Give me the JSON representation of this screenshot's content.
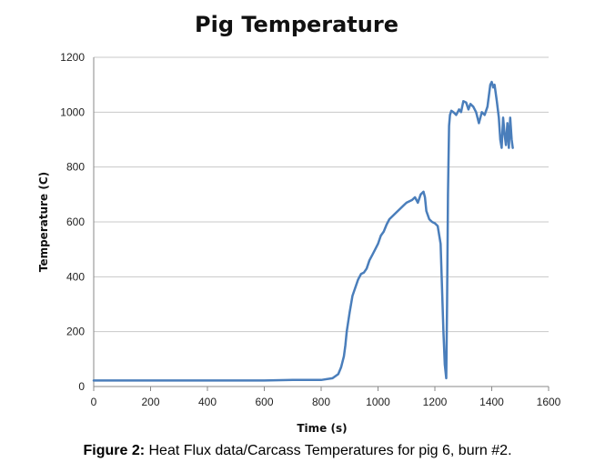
{
  "chart_data": {
    "type": "line",
    "title": "Pig Temperature",
    "xlabel": "Time (s)",
    "ylabel": "Temperature (C)",
    "xlim": [
      0,
      1600
    ],
    "ylim": [
      0,
      1200
    ],
    "xticks": [
      0,
      200,
      400,
      600,
      800,
      1000,
      1200,
      1400,
      1600
    ],
    "yticks": [
      0,
      200,
      400,
      600,
      800,
      1000,
      1200
    ],
    "grid": "horizontal",
    "legend": "none",
    "colors": {
      "series": "#4a7ebb",
      "grid": "#c8c8c8",
      "axis": "#8a8a8a"
    },
    "series": [
      {
        "x": [
          0,
          100,
          300,
          500,
          600,
          700,
          800,
          840,
          860,
          870,
          880,
          885,
          890,
          900,
          910,
          920,
          930,
          940,
          950,
          960,
          970,
          980,
          990,
          1000,
          1010,
          1020,
          1030,
          1040,
          1050,
          1060,
          1070,
          1080,
          1090,
          1100,
          1110,
          1120,
          1130,
          1140,
          1150,
          1160,
          1165,
          1170,
          1180,
          1190,
          1200,
          1210,
          1220,
          1230,
          1235,
          1240,
          1243,
          1246,
          1250,
          1253,
          1258,
          1265,
          1275,
          1285,
          1292,
          1300,
          1310,
          1318,
          1325,
          1335,
          1345,
          1355,
          1365,
          1375,
          1385,
          1395,
          1400,
          1405,
          1410,
          1418,
          1425,
          1430,
          1435,
          1440,
          1445,
          1450,
          1455,
          1460,
          1465,
          1470,
          1474
        ],
        "y": [
          22,
          22,
          22,
          22,
          22,
          24,
          24,
          30,
          45,
          70,
          110,
          150,
          200,
          270,
          330,
          360,
          390,
          410,
          415,
          430,
          460,
          480,
          500,
          520,
          550,
          565,
          590,
          610,
          620,
          630,
          640,
          650,
          660,
          670,
          675,
          680,
          690,
          670,
          700,
          710,
          690,
          640,
          610,
          600,
          595,
          585,
          520,
          200,
          80,
          30,
          300,
          700,
          950,
          990,
          1005,
          1000,
          990,
          1010,
          1000,
          1040,
          1035,
          1010,
          1030,
          1020,
          1000,
          960,
          1000,
          990,
          1020,
          1100,
          1110,
          1090,
          1100,
          1040,
          980,
          900,
          870,
          980,
          920,
          880,
          960,
          870,
          980,
          900,
          870
        ]
      }
    ]
  },
  "caption": {
    "label": "Figure 2:",
    "text": " Heat Flux data/Carcass Temperatures for pig 6, burn #2."
  }
}
